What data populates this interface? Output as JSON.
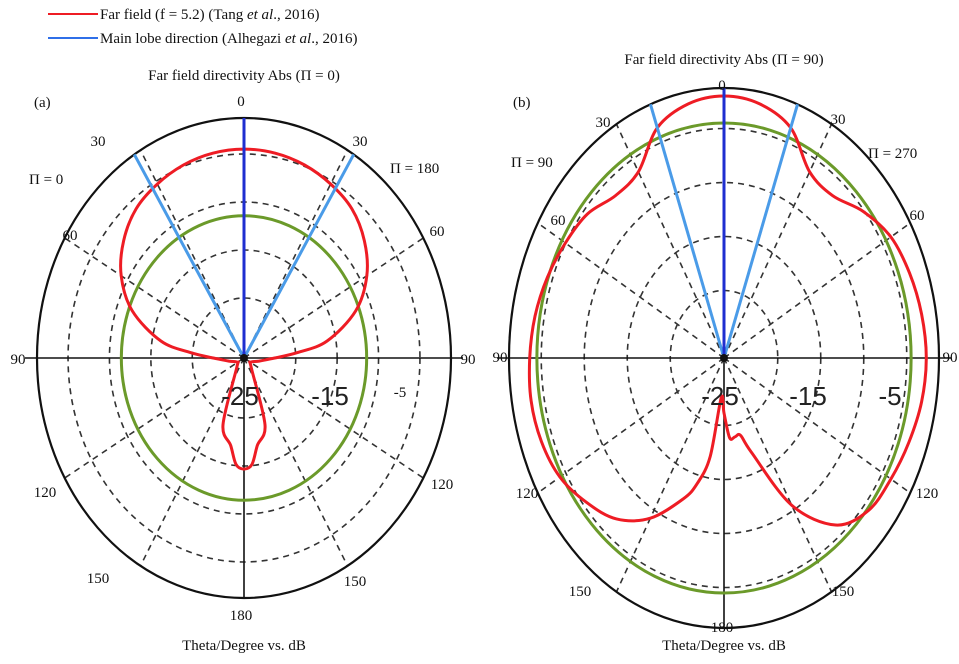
{
  "legend": {
    "items": [
      {
        "prefix": "Far field (f = 5.2) (Tang ",
        "italic": "et al",
        "suffix": "., 2016)",
        "color": "#ee1c24"
      },
      {
        "prefix": "Main lobe direction (Alhegazi ",
        "italic": "et al",
        "suffix": "., 2016)",
        "color": "#2f6fe8"
      }
    ]
  },
  "chart_data": [
    {
      "type": "polar",
      "panel_label": "(a)",
      "title": "Far field directivity Abs (Π = 0)",
      "xlabel": "Theta/Degree vs. dB",
      "angle_labels": [
        "0",
        "30",
        "30",
        "60",
        "60",
        "90",
        "90",
        "120",
        "120",
        "150",
        "150",
        "180"
      ],
      "side_labels": [
        "Π = 0",
        "Π = 180"
      ],
      "radial_labels": [
        "-25",
        "-15",
        "-5"
      ],
      "radial_range_db": [
        -30,
        -3
      ],
      "main_lobe_theta_deg": [
        -32,
        32
      ],
      "reference_circle_db": -14,
      "series": [
        {
          "name": "Far field (f = 5.2)",
          "color": "#ee1c24",
          "theta_deg": [
            0,
            10,
            20,
            30,
            40,
            50,
            60,
            70,
            80,
            85,
            90,
            100,
            120,
            140,
            160,
            170,
            175,
            180,
            185,
            190,
            200,
            220,
            240,
            260,
            270,
            275,
            280,
            290,
            300,
            310,
            320,
            330,
            340,
            350
          ],
          "db": [
            -6.5,
            -6.6,
            -6.9,
            -7.4,
            -8.1,
            -9.5,
            -11.5,
            -14.5,
            -19,
            -23,
            -26,
            -28,
            -29,
            -28.5,
            -22,
            -20,
            -18,
            -17.5,
            -18,
            -20,
            -22,
            -28.5,
            -29,
            -28,
            -26,
            -23,
            -19,
            -14.5,
            -11.5,
            -9.5,
            -8.1,
            -7.4,
            -6.9,
            -6.6
          ]
        }
      ]
    },
    {
      "type": "polar",
      "panel_label": "(b)",
      "title": "Far field directivity Abs (Π = 90)",
      "xlabel": "Theta/Degree vs. dB",
      "angle_labels": [
        "0",
        "30",
        "30",
        "60",
        "60",
        "90",
        "90",
        "120",
        "120",
        "150",
        "150",
        "180"
      ],
      "side_labels": [
        "Π = 90",
        "Π = 270"
      ],
      "radial_labels": [
        "-25",
        "-15",
        "-5"
      ],
      "radial_range_db": [
        -30,
        -3
      ],
      "main_lobe_theta_deg": [
        -20,
        20
      ],
      "reference_circle_db": -6.5,
      "series": [
        {
          "name": "Far field (f = 5.2)",
          "color": "#ee1c24",
          "theta_deg": [
            0,
            10,
            20,
            30,
            40,
            50,
            60,
            70,
            80,
            90,
            100,
            110,
            120,
            130,
            140,
            150,
            160,
            165,
            170,
            175,
            180,
            185,
            190,
            195,
            200,
            210,
            220,
            230,
            240,
            250,
            260,
            270,
            280,
            290,
            300,
            310,
            320,
            330,
            340,
            350
          ],
          "db": [
            -3.8,
            -4.2,
            -5.5,
            -8.5,
            -8.8,
            -7.2,
            -5.8,
            -5.2,
            -4.8,
            -4.6,
            -4.8,
            -5.3,
            -5.8,
            -6.3,
            -8.2,
            -13,
            -20,
            -22,
            -22,
            -22,
            -24.5,
            -26,
            -20,
            -17,
            -15,
            -11.5,
            -9,
            -7.5,
            -6.2,
            -5.6,
            -5.4,
            -5.6,
            -5.9,
            -6.4,
            -7.0,
            -7.6,
            -8.8,
            -8.5,
            -5.5,
            -4.2
          ]
        }
      ]
    }
  ]
}
